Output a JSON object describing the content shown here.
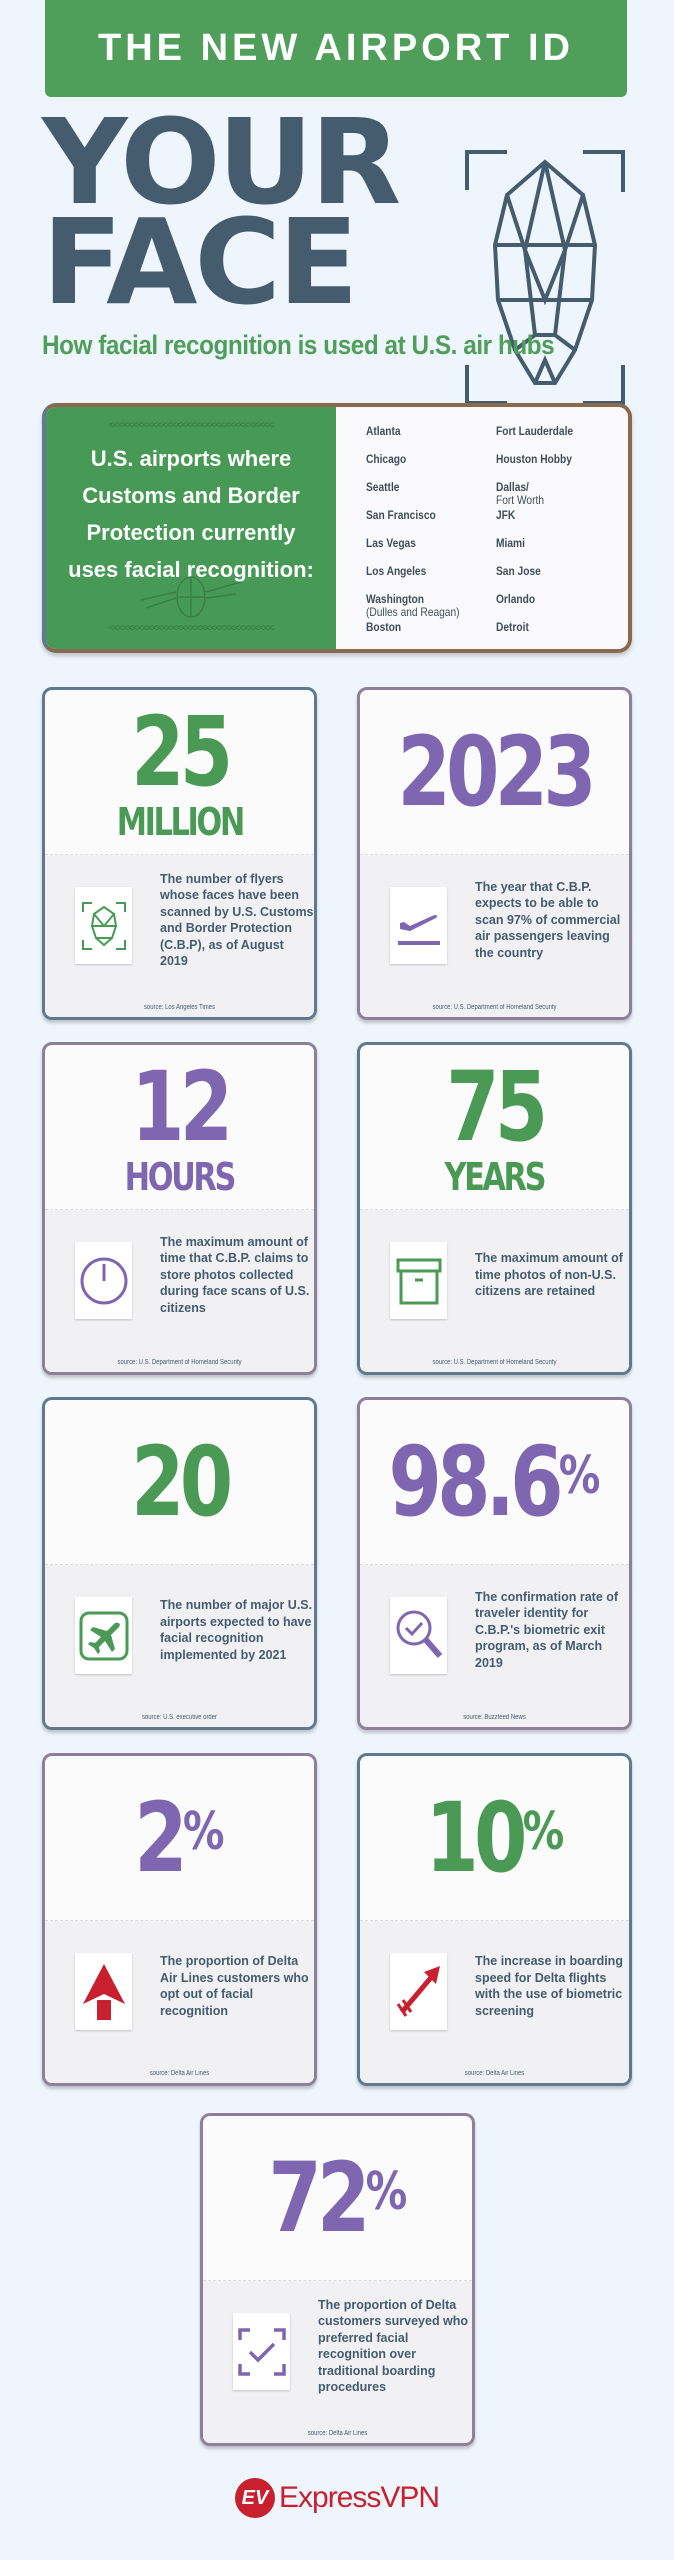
{
  "header": {
    "banner": "THE NEW AIRPORT ID",
    "title_line1": "YOUR",
    "title_line2": "FACE",
    "subtitle": "How facial recognition is used at U.S. air hubs"
  },
  "airports": {
    "heading": "U.S. airports where Customs and Border Protection currently uses facial recognition:",
    "col1": [
      {
        "name": "Atlanta"
      },
      {
        "name": "Chicago"
      },
      {
        "name": "Seattle"
      },
      {
        "name": "San Francisco"
      },
      {
        "name": "Las Vegas"
      },
      {
        "name": "Los Angeles"
      },
      {
        "name": "Washington",
        "sub": "(Dulles and Reagan)"
      },
      {
        "name": "Boston"
      }
    ],
    "col2": [
      {
        "name": "Fort Lauderdale"
      },
      {
        "name": "Houston Hobby"
      },
      {
        "name": "Dallas/",
        "sub": "Fort Worth"
      },
      {
        "name": "JFK"
      },
      {
        "name": "Miami"
      },
      {
        "name": "San Jose"
      },
      {
        "name": "Orlando"
      },
      {
        "name": "Detroit"
      }
    ]
  },
  "stats": [
    {
      "value": "25",
      "unit": "MILLION",
      "suffix": "",
      "color": "#4a9a55",
      "icon": "face-scan-icon",
      "text": "The number of flyers whose faces have been scanned by U.S. Customs and Border Protection (C.B.P), as of August 2019",
      "source": "source: Los Angeles Times"
    },
    {
      "value": "2023",
      "unit": "",
      "suffix": "",
      "color": "#7e66b0",
      "icon": "plane-takeoff-icon",
      "text": "The year that C.B.P. expects to be able to scan 97% of commercial air passengers leaving the country",
      "source": "source: U.S. Department of Homeland Security"
    },
    {
      "value": "12",
      "unit": "HOURS",
      "suffix": "",
      "color": "#7e66b0",
      "icon": "clock-icon",
      "text": "The maximum amount of time that C.B.P. claims to store photos collected during face scans of U.S. citizens",
      "source": "source: U.S. Department of Homeland Security"
    },
    {
      "value": "75",
      "unit": "YEARS",
      "suffix": "",
      "color": "#4a9a55",
      "icon": "archive-box-icon",
      "text": "The maximum amount of time photos of non-U.S. citizens are retained",
      "source": "source: U.S. Department of Homeland Security"
    },
    {
      "value": "20",
      "unit": "",
      "suffix": "",
      "color": "#4a9a55",
      "icon": "airport-sign-icon",
      "text": "The number of major U.S. airports expected to have facial recognition implemented by 2021",
      "source": "source: U.S. executive order"
    },
    {
      "value": "98.6",
      "unit": "",
      "suffix": "%",
      "color": "#7e66b0",
      "icon": "magnifier-check-icon",
      "text": "The confirmation rate of traveler identity for C.B.P.'s biometric exit program, as of March 2019",
      "source": "source: Buzzfeed News"
    },
    {
      "value": "2",
      "unit": "",
      "suffix": "%",
      "color": "#7e66b0",
      "icon": "delta-logo-icon",
      "text": "The proportion of Delta Air Lines customers who opt out of facial recognition",
      "source": "source: Delta Air Lines"
    },
    {
      "value": "10",
      "unit": "",
      "suffix": "%",
      "color": "#4a9a55",
      "icon": "arrow-icon",
      "text": "The increase in boarding speed for Delta flights with the use of biometric screening",
      "source": "source: Delta Air Lines"
    },
    {
      "value": "72",
      "unit": "",
      "suffix": "%",
      "color": "#7e66b0",
      "icon": "scan-check-icon",
      "text": "The proportion of Delta customers surveyed who preferred facial recognition over traditional boarding procedures",
      "source": "source: Delta Air Lines"
    }
  ],
  "footer": {
    "logo_mark": "EV",
    "brand": "ExpressVPN"
  }
}
